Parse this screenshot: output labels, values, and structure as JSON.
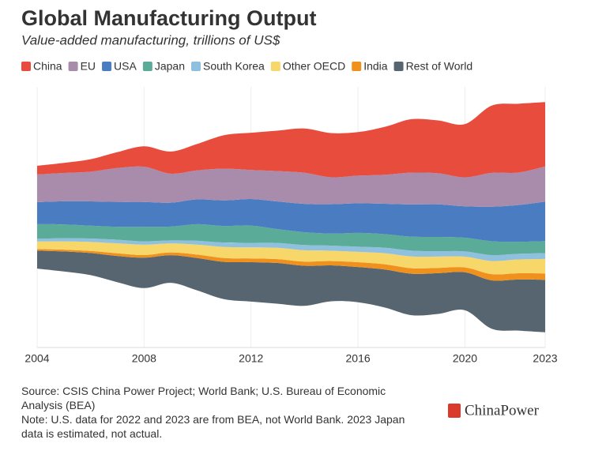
{
  "chart_data": {
    "type": "streamgraph",
    "title": "Global Manufacturing Output",
    "subtitle": "Value-added manufacturing, trillions of US$",
    "x": [
      2004,
      2005,
      2006,
      2007,
      2008,
      2009,
      2010,
      2011,
      2012,
      2013,
      2014,
      2015,
      2016,
      2017,
      2018,
      2019,
      2020,
      2021,
      2022,
      2023
    ],
    "xlim": [
      2004,
      2023
    ],
    "xticks": [
      2004,
      2008,
      2012,
      2016,
      2020,
      2023
    ],
    "grid": true,
    "series": [
      {
        "name": "China",
        "color": "#e84c3d",
        "values": [
          0.63,
          0.73,
          0.9,
          1.15,
          1.48,
          1.6,
          1.92,
          2.42,
          2.69,
          2.93,
          3.2,
          3.2,
          3.15,
          3.46,
          3.87,
          3.82,
          3.85,
          4.86,
          4.98,
          4.66
        ]
      },
      {
        "name": "EU",
        "color": "#a98bab",
        "values": [
          2.0,
          2.05,
          2.15,
          2.45,
          2.55,
          2.1,
          2.1,
          2.3,
          2.1,
          2.2,
          2.25,
          1.95,
          2.0,
          2.1,
          2.3,
          2.25,
          2.1,
          2.45,
          2.35,
          2.55
        ]
      },
      {
        "name": "USA",
        "color": "#4a7cc2",
        "values": [
          1.6,
          1.68,
          1.76,
          1.8,
          1.79,
          1.73,
          1.8,
          1.85,
          1.92,
          2.0,
          2.05,
          2.12,
          2.14,
          2.2,
          2.33,
          2.36,
          2.27,
          2.5,
          2.66,
          2.85
        ]
      },
      {
        "name": "Japan",
        "color": "#5aab98",
        "values": [
          1.05,
          0.99,
          0.93,
          0.93,
          1.06,
          1.0,
          1.2,
          1.2,
          1.25,
          1.0,
          0.93,
          0.87,
          1.0,
          0.98,
          1.01,
          1.03,
          0.99,
          1.0,
          0.87,
          0.87
        ]
      },
      {
        "name": "South Korea",
        "color": "#8fc1de",
        "values": [
          0.2,
          0.23,
          0.25,
          0.27,
          0.24,
          0.22,
          0.28,
          0.32,
          0.33,
          0.35,
          0.38,
          0.37,
          0.37,
          0.4,
          0.42,
          0.39,
          0.38,
          0.43,
          0.41,
          0.42
        ]
      },
      {
        "name": "Other OECD",
        "color": "#f7d66a",
        "values": [
          0.55,
          0.6,
          0.65,
          0.72,
          0.75,
          0.65,
          0.72,
          0.8,
          0.8,
          0.82,
          0.82,
          0.75,
          0.75,
          0.8,
          0.85,
          0.82,
          0.78,
          0.95,
          1.0,
          1.05
        ]
      },
      {
        "name": "India",
        "color": "#f0911d",
        "values": [
          0.11,
          0.13,
          0.15,
          0.19,
          0.19,
          0.2,
          0.25,
          0.28,
          0.27,
          0.28,
          0.3,
          0.31,
          0.35,
          0.38,
          0.4,
          0.38,
          0.35,
          0.45,
          0.45,
          0.46
        ]
      },
      {
        "name": "Rest of World",
        "color": "#56656f",
        "values": [
          1.3,
          1.45,
          1.6,
          1.9,
          2.2,
          2.0,
          2.35,
          2.7,
          2.85,
          2.95,
          2.9,
          2.6,
          2.55,
          2.75,
          3.0,
          2.95,
          2.75,
          3.5,
          3.7,
          3.8
        ]
      }
    ],
    "source": "Source: CSIS China Power Project; World Bank; U.S. Bureau of Economic Analysis (BEA)",
    "note": "Note: U.S. data for 2022 and 2023 are from BEA, not World Bank. 2023 Japan data is estimated, not actual.",
    "logo": "ChinaPower"
  }
}
